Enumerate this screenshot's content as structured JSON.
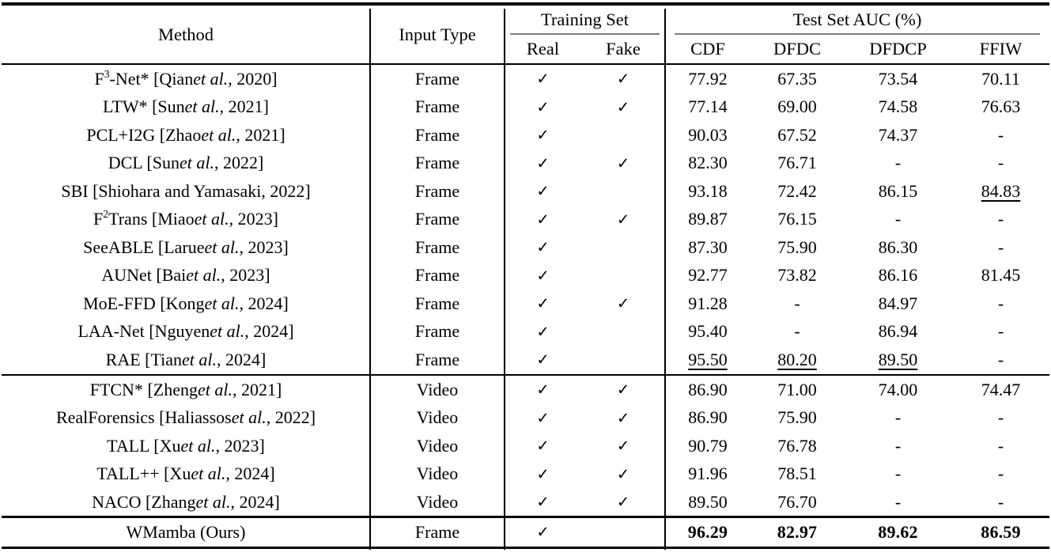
{
  "header": {
    "method": "Method",
    "input_type": "Input Type",
    "training_set": "Training Set",
    "real": "Real",
    "fake": "Fake",
    "test_auc": "Test Set AUC (%)",
    "auc_cols": [
      "CDF",
      "DFDC",
      "DFDCP",
      "FFIW"
    ]
  },
  "table": {
    "check_glyph": "✓",
    "rows": [
      {
        "method": "F{sup}3{/sup}-Net* [Qian {i}et al.{/i}, 2020]",
        "input": "Frame",
        "real": true,
        "fake": true,
        "scores": [
          "77.92",
          "67.35",
          "73.54",
          "70.11"
        ]
      },
      {
        "method": "LTW* [Sun {i}et al.{/i}, 2021]",
        "input": "Frame",
        "real": true,
        "fake": true,
        "scores": [
          "77.14",
          "69.00",
          "74.58",
          "76.63"
        ]
      },
      {
        "method": "PCL+I2G [Zhao {i}et al.{/i}, 2021]",
        "input": "Frame",
        "real": true,
        "fake": false,
        "scores": [
          "90.03",
          "67.52",
          "74.37",
          "-"
        ]
      },
      {
        "method": "DCL [Sun {i}et al.{/i}, 2022]",
        "input": "Frame",
        "real": true,
        "fake": true,
        "scores": [
          "82.30",
          "76.71",
          "-",
          "-"
        ]
      },
      {
        "method": "SBI [Shiohara and Yamasaki, 2022]",
        "input": "Frame",
        "real": true,
        "fake": false,
        "scores": [
          "93.18",
          "72.42",
          "86.15",
          "{u}84.83{/u}"
        ]
      },
      {
        "method": "F{sup}2{/sup}Trans [Miao {i}et al.{/i}, 2023]",
        "input": "Frame",
        "real": true,
        "fake": true,
        "scores": [
          "89.87",
          "76.15",
          "-",
          "-"
        ]
      },
      {
        "method": "SeeABLE [Larue {i}et al.{/i}, 2023]",
        "input": "Frame",
        "real": true,
        "fake": false,
        "scores": [
          "87.30",
          "75.90",
          "86.30",
          "-"
        ]
      },
      {
        "method": "AUNet [Bai {i}et al.{/i}, 2023]",
        "input": "Frame",
        "real": true,
        "fake": false,
        "scores": [
          "92.77",
          "73.82",
          "86.16",
          "81.45"
        ]
      },
      {
        "method": "MoE-FFD [Kong {i}et al.{/i}, 2024]",
        "input": "Frame",
        "real": true,
        "fake": true,
        "scores": [
          "91.28",
          "-",
          "84.97",
          "-"
        ]
      },
      {
        "method": "LAA-Net [Nguyen {i}et al.{/i}, 2024]",
        "input": "Frame",
        "real": true,
        "fake": false,
        "scores": [
          "95.40",
          "-",
          "86.94",
          "-"
        ]
      },
      {
        "method": "RAE [Tian {i}et al.{/i}, 2024]",
        "input": "Frame",
        "real": true,
        "fake": false,
        "scores": [
          "{u}95.50{/u}",
          "{u}80.20{/u}",
          "{u}89.50{/u}",
          "-"
        ]
      },
      {
        "method": "FTCN* [Zheng {i}et al.{/i}, 2021]",
        "input": "Video",
        "real": true,
        "fake": true,
        "sep_before": true,
        "scores": [
          "86.90",
          "71.00",
          "74.00",
          "74.47"
        ]
      },
      {
        "method": "RealForensics [Haliassos {i}et al.{/i}, 2022]",
        "input": "Video",
        "real": true,
        "fake": true,
        "scores": [
          "86.90",
          "75.90",
          "-",
          "-"
        ]
      },
      {
        "method": "TALL [Xu {i}et al.{/i}, 2023]",
        "input": "Video",
        "real": true,
        "fake": true,
        "scores": [
          "90.79",
          "76.78",
          "-",
          "-"
        ]
      },
      {
        "method": "TALL++ [Xu {i}et al.{/i}, 2024]",
        "input": "Video",
        "real": true,
        "fake": true,
        "scores": [
          "91.96",
          "78.51",
          "-",
          "-"
        ]
      },
      {
        "method": "NACO [Zhang {i}et al.{/i}, 2024]",
        "input": "Video",
        "real": true,
        "fake": true,
        "scores": [
          "89.50",
          "76.70",
          "-",
          "-"
        ]
      },
      {
        "method": "WMamba (Ours)",
        "input": "Frame",
        "real": true,
        "fake": false,
        "sep_before": true,
        "emph": true,
        "scores": [
          "{b}96.29{/b}",
          "{b}82.97{/b}",
          "{b}89.62{/b}",
          "{b}86.59{/b}"
        ]
      }
    ]
  }
}
